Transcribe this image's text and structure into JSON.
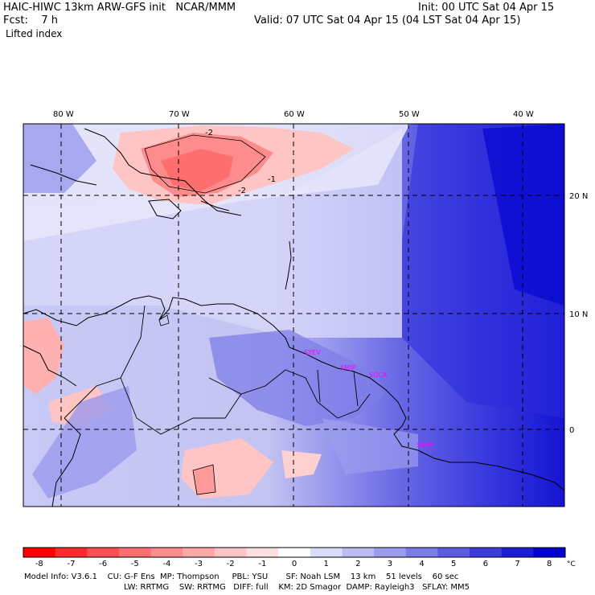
{
  "header": {
    "model_title": "HAIC-HIWC 13km ARW-GFS init   NCAR/MMM",
    "init": "Init: 00 UTC Sat 04 Apr 15",
    "fcst": "Fcst:    7 h",
    "valid": "Valid: 07 UTC Sat 04 Apr 15 (04 LST Sat 04 Apr 15)",
    "field": "Lifted index"
  },
  "map": {
    "lon_labels": [
      "80 W",
      "70 W",
      "60 W",
      "50 W",
      "40 W"
    ],
    "lat_labels": [
      "20 N",
      "10 N",
      "0"
    ],
    "contour_labels": [
      "-2",
      "-2",
      "-1"
    ],
    "stations": [
      "SYEV",
      "SMJP",
      "SOCA",
      "SBBE"
    ],
    "station_color": "#ff00ff"
  },
  "colorbar": {
    "ticks": [
      "-8",
      "-7",
      "-6",
      "-5",
      "-4",
      "-3",
      "-2",
      "-1",
      "0",
      "1",
      "2",
      "3",
      "4",
      "5",
      "6",
      "7",
      "8"
    ],
    "unit": "°C",
    "colors": [
      "#ff0000",
      "#ff2b2b",
      "#ff4f4f",
      "#ff6e6e",
      "#ff8c8c",
      "#ffa8a8",
      "#ffc4c4",
      "#ffe0e0",
      "#ffffff",
      "#dcdcfb",
      "#bcbcf5",
      "#9c9cef",
      "#7c7ce9",
      "#5c5ce3",
      "#3c3cdd",
      "#1c1cd7",
      "#0000d0"
    ]
  },
  "footer": {
    "line1": "Model Info: V3.6.1    CU: G-F Ens  MP: Thompson     PBL: YSU       SF: Noah LSM    13 km    51 levels    60 sec",
    "line2": "LW: RRTMG    SW: RRTMG   DIFF: full    KM: 2D Smagor  DAMP: Rayleigh3   SFLAY: MM5"
  }
}
